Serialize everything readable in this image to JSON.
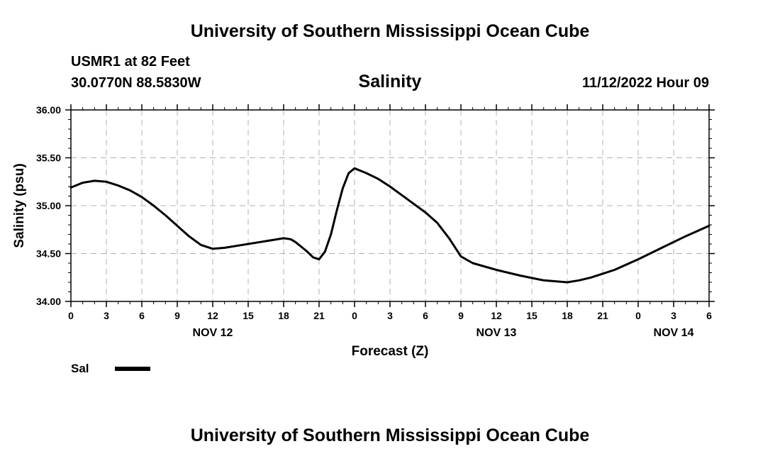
{
  "header": {
    "title": "University of Southern Mississippi Ocean Cube",
    "station": "USMR1 at 82 Feet",
    "coords": "30.0770N  88.5830W",
    "variable": "Salinity",
    "datetime": "11/12/2022 Hour 09"
  },
  "footer": {
    "title": "University of Southern Mississippi Ocean Cube"
  },
  "chart_data": {
    "type": "line",
    "ylabel": "Salinity (psu)",
    "xlabel": "Forecast (Z)",
    "ylim": [
      34.0,
      36.0
    ],
    "xlim": [
      0,
      54
    ],
    "y_ticks": [
      "34.00",
      "34.50",
      "35.00",
      "35.50",
      "36.00"
    ],
    "x_ticks": [
      {
        "x": 0,
        "label": "0"
      },
      {
        "x": 3,
        "label": "3"
      },
      {
        "x": 6,
        "label": "6"
      },
      {
        "x": 9,
        "label": "9"
      },
      {
        "x": 12,
        "label": "12"
      },
      {
        "x": 15,
        "label": "15"
      },
      {
        "x": 18,
        "label": "18"
      },
      {
        "x": 21,
        "label": "21"
      },
      {
        "x": 24,
        "label": "0"
      },
      {
        "x": 27,
        "label": "3"
      },
      {
        "x": 30,
        "label": "6"
      },
      {
        "x": 33,
        "label": "9"
      },
      {
        "x": 36,
        "label": "12"
      },
      {
        "x": 39,
        "label": "15"
      },
      {
        "x": 42,
        "label": "18"
      },
      {
        "x": 45,
        "label": "21"
      },
      {
        "x": 48,
        "label": "0"
      },
      {
        "x": 51,
        "label": "3"
      },
      {
        "x": 54,
        "label": "6"
      }
    ],
    "day_labels": [
      {
        "x": 12,
        "label": "NOV 12"
      },
      {
        "x": 36,
        "label": "NOV 13"
      },
      {
        "x": 51,
        "label": "NOV 14"
      }
    ],
    "grid": true,
    "series": [
      {
        "name": "Sal",
        "x": [
          0,
          1,
          2,
          3,
          4,
          5,
          6,
          7,
          8,
          9,
          10,
          11,
          12,
          13,
          14,
          15,
          16,
          17,
          18,
          18.6,
          19,
          19.5,
          20,
          20.5,
          21,
          21.5,
          22,
          22.5,
          23,
          23.5,
          24,
          25,
          26,
          27,
          28,
          29,
          30,
          31,
          32,
          33,
          34,
          36,
          38,
          40,
          41,
          42,
          43,
          44,
          45,
          46,
          48,
          50,
          52,
          54
        ],
        "values": [
          35.19,
          35.24,
          35.26,
          35.25,
          35.21,
          35.16,
          35.09,
          35.0,
          34.9,
          34.79,
          34.68,
          34.59,
          34.55,
          34.56,
          34.58,
          34.6,
          34.62,
          34.64,
          34.66,
          34.65,
          34.62,
          34.57,
          34.52,
          34.46,
          34.44,
          34.52,
          34.7,
          34.95,
          35.18,
          35.34,
          35.39,
          35.34,
          35.28,
          35.2,
          35.11,
          35.02,
          34.93,
          34.82,
          34.66,
          34.47,
          34.4,
          34.33,
          34.27,
          34.22,
          34.21,
          34.2,
          34.22,
          34.25,
          34.29,
          34.33,
          34.44,
          34.56,
          34.68,
          34.79
        ]
      }
    ]
  }
}
